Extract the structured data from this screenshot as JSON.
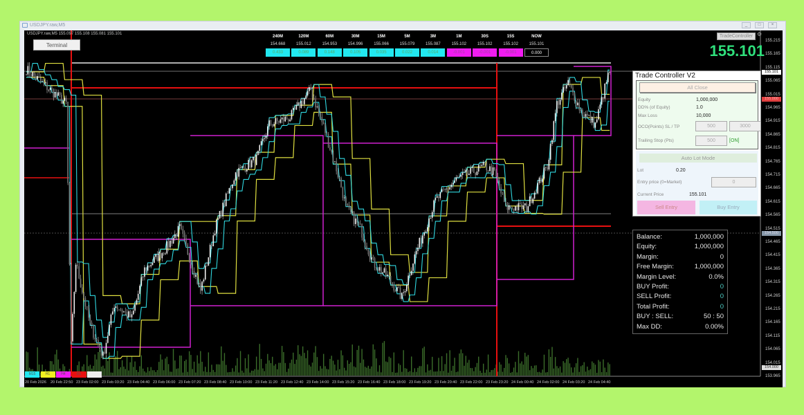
{
  "window": {
    "title": "USDJPY.raw,M5",
    "buttons": [
      "minimize",
      "maximize",
      "close"
    ]
  },
  "chart": {
    "symbol_line": "USDJPY.raw,M5  155.097 155.108 155.081 155.101",
    "terminal_label": "Terminal",
    "trade_controller_button": "TradeController",
    "big_price": "155.101",
    "timeframes": [
      {
        "label": "240M",
        "price": "154.668",
        "diff": "0.433",
        "color": "#22e8f0"
      },
      {
        "label": "120M",
        "price": "155.012",
        "diff": "0.089",
        "color": "#22e8f0"
      },
      {
        "label": "60M",
        "price": "154.953",
        "diff": "0.148",
        "color": "#22e8f0"
      },
      {
        "label": "30M",
        "price": "154.996",
        "diff": "0.105",
        "color": "#22e8f0"
      },
      {
        "label": "15M",
        "price": "155.066",
        "diff": "0.035",
        "color": "#22e8f0"
      },
      {
        "label": "5M",
        "price": "155.079",
        "diff": "0.022",
        "color": "#22e8f0"
      },
      {
        "label": "3M",
        "price": "155.087",
        "diff": "0.014",
        "color": "#22e8f0"
      },
      {
        "label": "1M",
        "price": "155.102",
        "diff": "-0.001",
        "color": "#f01cf0"
      },
      {
        "label": "30S",
        "price": "155.102",
        "diff": "-0.001",
        "color": "#f01cf0"
      },
      {
        "label": "15S",
        "price": "155.102",
        "diff": "-0.001",
        "color": "#f01cf0"
      },
      {
        "label": "NOW",
        "price": "155.101",
        "diff": "0.000",
        "color": "#000000"
      }
    ],
    "price_axis": [
      "155.215",
      "155.165",
      "155.115",
      "155.065",
      "155.015",
      "154.965",
      "154.915",
      "154.865",
      "154.815",
      "154.765",
      "154.715",
      "154.665",
      "154.615",
      "154.565",
      "154.515",
      "154.465",
      "154.415",
      "154.365",
      "154.315",
      "154.265",
      "154.215",
      "154.165",
      "154.115",
      "154.065",
      "154.015",
      "153.965"
    ],
    "price_tags": [
      {
        "text": "155.101",
        "price": 155.101,
        "bg": "#ffffff",
        "fg": "#000000"
      },
      {
        "text": "155.000",
        "price": 155.0,
        "bg": "#e04040",
        "fg": "#ffb0b0"
      },
      {
        "text": "154.500",
        "price": 154.5,
        "bg": "#8899aa",
        "fg": "#dde"
      },
      {
        "text": "154.000",
        "price": 154.0,
        "bg": "#dddddd",
        "fg": "#333"
      }
    ],
    "time_axis": [
      "20 Feb 2026",
      "20 Feb 22:50",
      "23 Feb 02:00",
      "23 Feb 03:20",
      "23 Feb 04:40",
      "23 Feb 06:00",
      "23 Feb 07:20",
      "23 Feb 08:40",
      "23 Feb 10:00",
      "23 Feb 11:20",
      "23 Feb 12:40",
      "23 Feb 14:00",
      "23 Feb 15:20",
      "23 Feb 16:40",
      "23 Feb 18:00",
      "23 Feb 19:20",
      "23 Feb 20:40",
      "23 Feb 22:00",
      "23 Feb 23:20",
      "24 Feb 00:40",
      "24 Feb 02:00",
      "24 Feb 03:20",
      "24 Feb 04:40"
    ],
    "legend": [
      {
        "label": "M15",
        "color": "#22e8f0"
      },
      {
        "label": "H1",
        "color": "#f0f020"
      },
      {
        "label": "H4",
        "color": "#f01cf0"
      },
      {
        "label": "D1",
        "color": "#e81010"
      },
      {
        "label": "",
        "color": "#eeeeee"
      }
    ],
    "price_path": [
      [
        0,
        155.112
      ],
      [
        25,
        154.983
      ],
      [
        28,
        154.081
      ],
      [
        31,
        154.39
      ],
      [
        40,
        154.158
      ],
      [
        48,
        154.042
      ],
      [
        55,
        154.236
      ],
      [
        66,
        154.184
      ],
      [
        74,
        154.365
      ],
      [
        87,
        154.442
      ],
      [
        96,
        154.519
      ],
      [
        109,
        154.287
      ],
      [
        118,
        154.519
      ],
      [
        131,
        154.725
      ],
      [
        144,
        154.777
      ],
      [
        152,
        154.906
      ],
      [
        165,
        154.932
      ],
      [
        178,
        155.035
      ],
      [
        187,
        154.88
      ],
      [
        196,
        154.7
      ],
      [
        200,
        154.597
      ],
      [
        209,
        154.519
      ],
      [
        217,
        154.39
      ],
      [
        226,
        154.339
      ],
      [
        235,
        154.261
      ],
      [
        243,
        154.416
      ],
      [
        256,
        154.622
      ],
      [
        269,
        154.7
      ],
      [
        287,
        154.751
      ],
      [
        293,
        154.725
      ],
      [
        300,
        154.597
      ],
      [
        313,
        154.597
      ],
      [
        326,
        154.751
      ],
      [
        332,
        154.983
      ],
      [
        339,
        155.06
      ],
      [
        347,
        154.957
      ],
      [
        356,
        154.906
      ],
      [
        364,
        155.086
      ],
      [
        365,
        155.101
      ]
    ]
  },
  "trade_controller": {
    "title": "Trade Controller V2",
    "all_close": "All Close",
    "equity_label": "Equity",
    "equity_value": "1,000,000",
    "dd_label": "DD% (of Equity)",
    "dd_value": "1.0",
    "maxloss_label": "Max Loss",
    "maxloss_value": "10,000",
    "oco_label": "OCO(Points) SL / TP",
    "sl_value": "500",
    "tp_value": "3000",
    "trailing_label": "Trailing Stop (Pts)",
    "trailing_value": "500",
    "trailing_state": "[ON]",
    "auto_lot": "Auto Lot Mode",
    "lot_label": "Lot",
    "lot_value": "0.20",
    "entry_label": "Entry price (0=Market)",
    "entry_value": "0",
    "current_label": "Current Price",
    "current_value": "155.101",
    "sell": "Sell Entry",
    "buy": "Buy Entry"
  },
  "account": [
    {
      "label": "Balance:",
      "value": "1,000,000"
    },
    {
      "label": "Equity:",
      "value": "1,000,000"
    },
    {
      "label": "Margin:",
      "value": "0"
    },
    {
      "label": "Free Margin:",
      "value": "1,000,000"
    },
    {
      "label": "Margin Level:",
      "value": "0.0%"
    },
    {
      "label": "BUY Profit:",
      "value": "0",
      "teal": true
    },
    {
      "label": "SELL Profit:",
      "value": "0",
      "teal": true
    },
    {
      "label": "Total Profit:",
      "value": "0",
      "teal": true
    },
    {
      "label": "BUY : SELL:",
      "value": "50 : 50"
    },
    {
      "label": "Max DD:",
      "value": "0.00%"
    }
  ]
}
